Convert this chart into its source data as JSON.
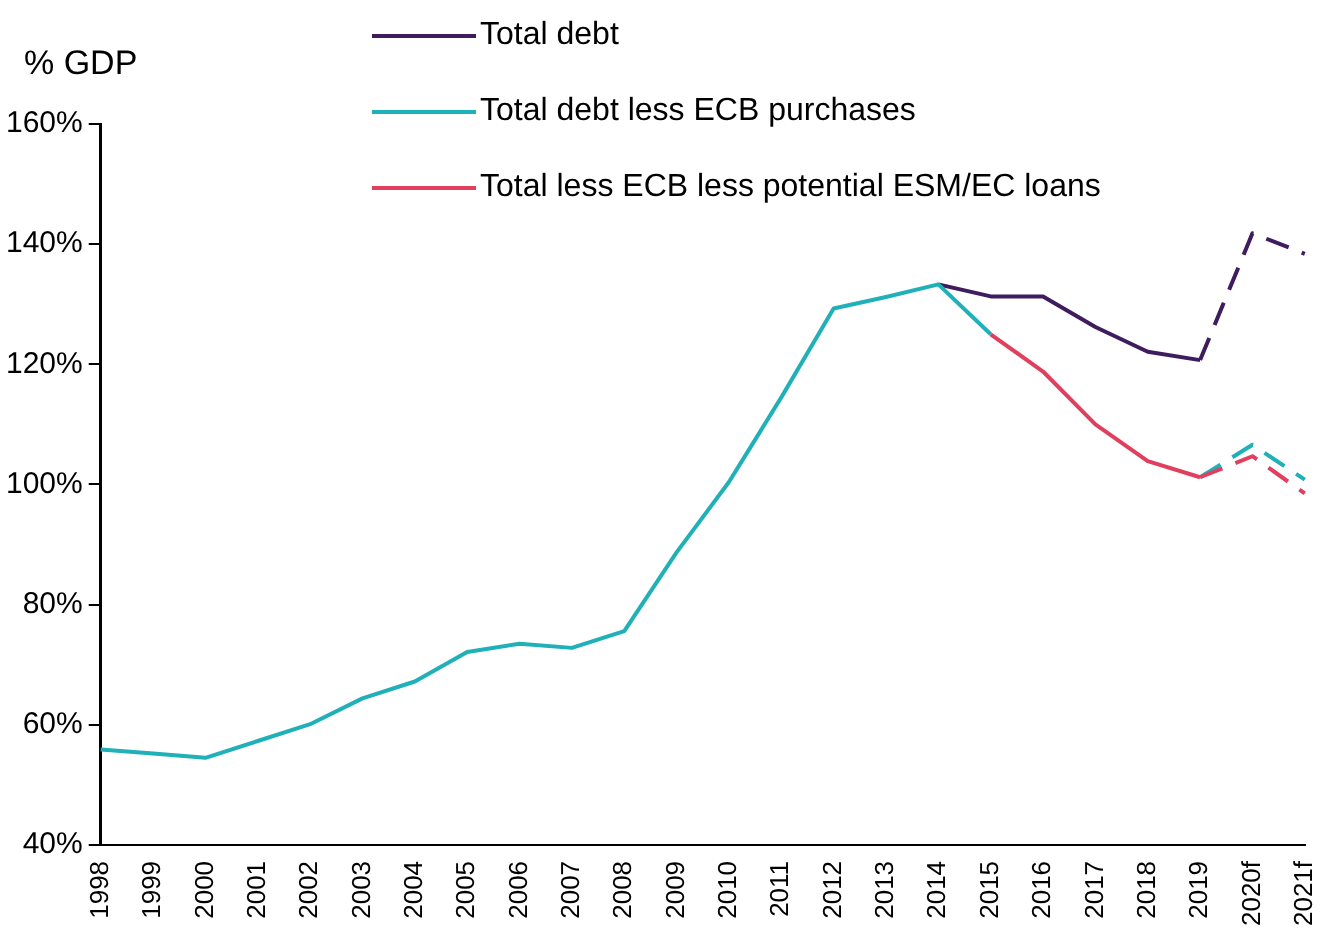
{
  "chart_data": {
    "type": "line",
    "ylabel": "% GDP",
    "categories": [
      "1998",
      "1999",
      "2000",
      "2001",
      "2002",
      "2003",
      "2004",
      "2005",
      "2006",
      "2007",
      "2008",
      "2009",
      "2010",
      "2011",
      "2012",
      "2013",
      "2014",
      "2015",
      "2016",
      "2017",
      "2018",
      "2019",
      "2020f",
      "2021f"
    ],
    "series": [
      {
        "name": "Total debt",
        "color": "#3f1c5e",
        "values": [
          null,
          null,
          null,
          null,
          null,
          null,
          null,
          null,
          null,
          null,
          null,
          null,
          null,
          null,
          null,
          null,
          133.3,
          131.3,
          131.3,
          126.2,
          122.1,
          120.7,
          null,
          null
        ]
      },
      {
        "name": "Total debt less ECB purchases",
        "color": "#1fb0b8",
        "values": [
          55.9,
          55.2,
          54.5,
          57.3,
          60.1,
          64.4,
          67.2,
          72.1,
          73.5,
          72.8,
          75.6,
          88.7,
          100.4,
          114.5,
          129.3,
          131.2,
          133.3,
          125,
          null,
          null,
          null,
          null,
          null,
          null
        ]
      },
      {
        "name": "Total less ECB less potential ESM/EC loans",
        "color": "#e0405e",
        "values": [
          null,
          null,
          null,
          null,
          null,
          null,
          null,
          null,
          null,
          null,
          null,
          null,
          null,
          null,
          null,
          null,
          null,
          125,
          118.8,
          110,
          103.9,
          101.2,
          null,
          null
        ]
      },
      {
        "color": "#3f1c5e",
        "line_style": "dashed",
        "values": [
          null,
          null,
          null,
          null,
          null,
          null,
          null,
          null,
          null,
          null,
          null,
          null,
          null,
          null,
          null,
          null,
          null,
          null,
          null,
          null,
          null,
          120.7,
          141.8,
          138.4
        ]
      },
      {
        "color": "#1fb0b8",
        "line_style": "dashed",
        "values": [
          null,
          null,
          null,
          null,
          null,
          null,
          null,
          null,
          null,
          null,
          null,
          null,
          null,
          null,
          null,
          null,
          null,
          null,
          null,
          null,
          null,
          101.2,
          106.6,
          100.8
        ]
      },
      {
        "color": "#e0405e",
        "line_style": "dashed",
        "values": [
          null,
          null,
          null,
          null,
          null,
          null,
          null,
          null,
          null,
          null,
          null,
          null,
          null,
          null,
          null,
          null,
          null,
          null,
          null,
          null,
          null,
          101.2,
          104.7,
          98.5
        ]
      }
    ],
    "ylim": [
      40,
      160
    ],
    "yticks": [
      {
        "value": 40,
        "label": "40%"
      },
      {
        "value": 60,
        "label": "60%"
      },
      {
        "value": 80,
        "label": "80%"
      },
      {
        "value": 100,
        "label": "100%"
      },
      {
        "value": 120,
        "label": "120%"
      },
      {
        "value": 140,
        "label": "140%"
      },
      {
        "value": 160,
        "label": "160%"
      }
    ],
    "grid": false,
    "legend": "top",
    "marker": "none"
  }
}
